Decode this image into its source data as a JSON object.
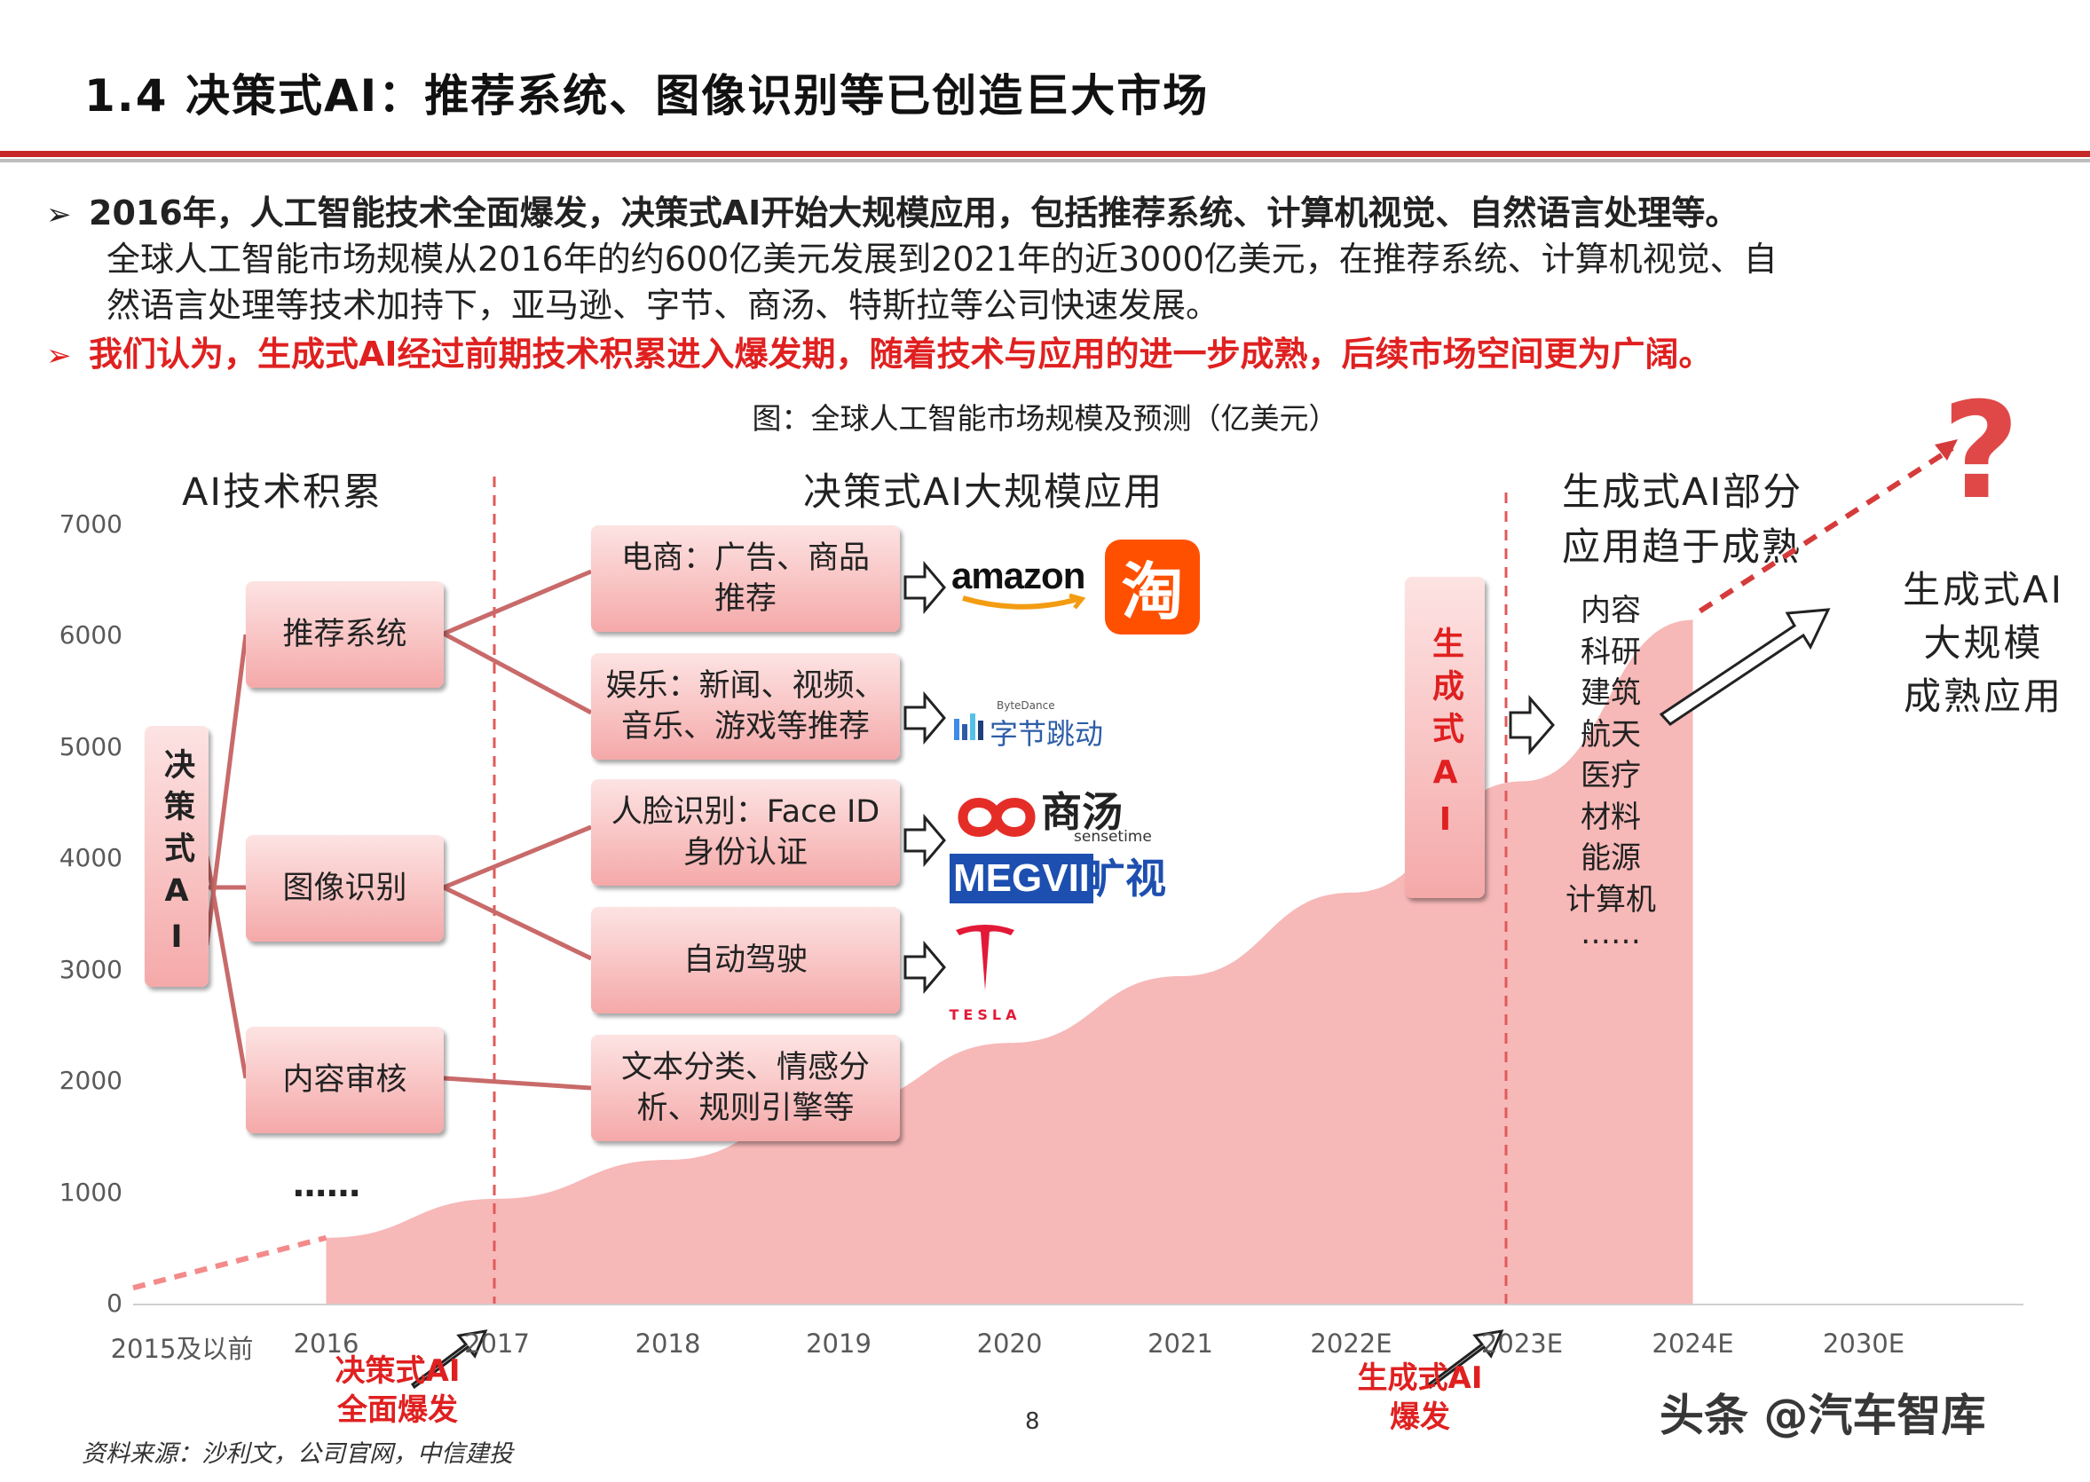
{
  "slide": {
    "title": "1.4 决策式AI：推荐系统、图像识别等已创造巨大市场",
    "page_number": "8",
    "source": "资料来源：沙利文，公司官网，中信建投",
    "watermark": "头条 @汽车智库"
  },
  "bullets": [
    {
      "marker": "➢",
      "line1": "2016年，人工智能技术全面爆发，决策式AI开始大规模应用，包括推荐系统、计算机视觉、自然语言处理等。",
      "line2": "全球人工智能市场规模从2016年的约600亿美元发展到2021年的近3000亿美元，在推荐系统、计算机视觉、自",
      "line3": "然语言处理等技术加持下，亚马逊、字节、商汤、特斯拉等公司快速发展。"
    },
    {
      "marker": "➢",
      "line1": "我们认为，生成式AI经过前期技术积累进入爆发期，随着技术与应用的进一步成熟，后续市场空间更为广阔。"
    }
  ],
  "phases": {
    "accumulation": "AI技术积累",
    "decision_ai": "决策式AI大规模应用",
    "gen_partial_line1": "生成式AI部分",
    "gen_partial_line2": "应用趋于成熟",
    "gen_mature_line1": "生成式AI",
    "gen_mature_line2": "大规模",
    "gen_mature_line3": "成熟应用"
  },
  "tree": {
    "root": "决策式AI",
    "branches": [
      "推荐系统",
      "图像识别",
      "内容审核",
      "……"
    ],
    "leaves": [
      {
        "line1": "电商：广告、商品",
        "line2": "推荐"
      },
      {
        "line1": "娱乐：新闻、视频、",
        "line2": "音乐、游戏等推荐"
      },
      {
        "line1": "人脸识别：Face ID",
        "line2": "身份认证"
      },
      {
        "line1": "自动驾驶",
        "line2": ""
      },
      {
        "line1": "文本分类、情感分",
        "line2": "析、规则引擎等"
      }
    ]
  },
  "logos": {
    "amazon": "amazon",
    "taobao": "淘",
    "bytedance_small": "ByteDance",
    "bytedance": "字节跳动",
    "sensetime_cn": "商汤",
    "sensetime_en": "sensetime",
    "megvii": "MEGVII",
    "megvii_cn": "旷视",
    "tesla": "TESLA"
  },
  "generative": {
    "box": "生成式AI",
    "list": [
      "内容",
      "科研",
      "建筑",
      "航天",
      "医疗",
      "材料",
      "能源",
      "计算机",
      "……"
    ],
    "question": "?"
  },
  "annotations": {
    "decision_burst_line1": "决策式AI",
    "decision_burst_line2": "全面爆发",
    "gen_burst_line1": "生成式AI",
    "gen_burst_line2": "爆发"
  },
  "colors": {
    "accent_red": "#e02020",
    "area_fill": "#f7b8b8",
    "box_fill": "#f5a9a9",
    "title_rule": "#c62828"
  },
  "chart_data": {
    "type": "area",
    "title": "图：全球人工智能市场规模及预测（亿美元）",
    "categories": [
      "2015及以前",
      "2016",
      "2017",
      "2018",
      "2019",
      "2020",
      "2021",
      "2022E",
      "2023E",
      "2024E",
      "2030E"
    ],
    "yticks": [
      0,
      1000,
      2000,
      3000,
      4000,
      5000,
      6000,
      7000
    ],
    "ylim": [
      0,
      7000
    ],
    "series": [
      {
        "x": [
          "2016",
          "2017",
          "2018",
          "2019",
          "2020",
          "2021",
          "2022E",
          "2023E",
          "2024E"
        ],
        "values": [
          600,
          950,
          1300,
          1800,
          2350,
          2950,
          3700,
          4700,
          6150
        ]
      }
    ],
    "dashed_lead_in": {
      "from": [
        "2015及以前",
        150
      ],
      "to": [
        "2016",
        600
      ]
    },
    "dashed_projection": {
      "from": [
        "2024E",
        6150
      ],
      "to": [
        "2030E",
        7600
      ]
    },
    "grid": false
  }
}
